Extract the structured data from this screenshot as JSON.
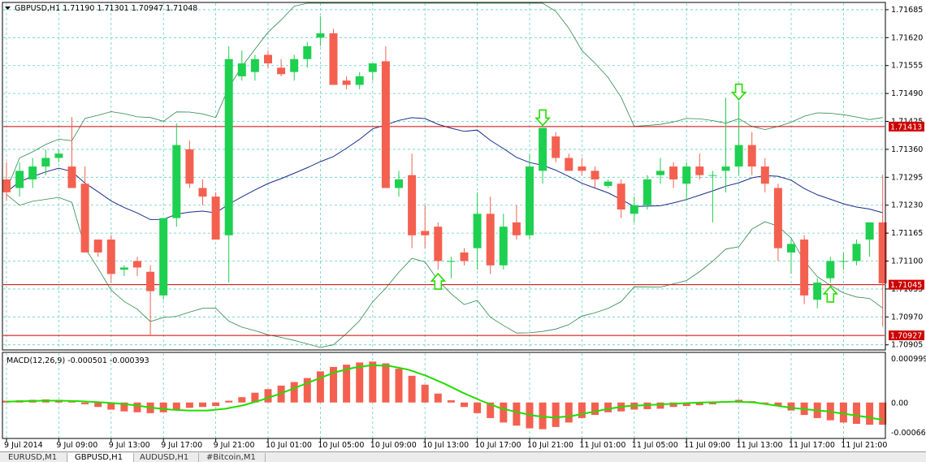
{
  "header": {
    "symbol_info": "GBPUSD,H1  1.71190 1.71301 1.70947 1.71048"
  },
  "macd": {
    "label": "MACD(12,26,9) -0.000501 -0.000393",
    "axis_ticks": [
      "0.000999",
      "0.00",
      "-0.000662"
    ]
  },
  "price_axis": {
    "ticks": [
      "1.71685",
      "1.71620",
      "1.71555",
      "1.71490",
      "1.71425",
      "1.71360",
      "1.71295",
      "1.71230",
      "1.71165",
      "1.71100",
      "1.71035",
      "1.70970",
      "1.70905"
    ],
    "tags": [
      "1.71413",
      "1.71045",
      "1.70927"
    ]
  },
  "time_axis": [
    "9 Jul 2014",
    "9 Jul 09:00",
    "9 Jul 13:00",
    "9 Jul 17:00",
    "9 Jul 21:00",
    "10 Jul 01:00",
    "10 Jul 05:00",
    "10 Jul 09:00",
    "10 Jul 13:00",
    "10 Jul 17:00",
    "10 Jul 21:00",
    "11 Jul 01:00",
    "11 Jul 05:00",
    "11 Jul 09:00",
    "11 Jul 13:00",
    "11 Jul 17:00",
    "11 Jul 21:00"
  ],
  "tabs": [
    "EURUSD,M1",
    "GBPUSD,H1",
    "AUDUSD,H1",
    "#Bitcoin,M1"
  ],
  "colors": {
    "bull": "#1ed050",
    "bear": "#f46050",
    "level": "#cc0000",
    "grid": "#60d0c0",
    "signal": "#22dd00"
  },
  "chart_data": {
    "type": "candlestick",
    "series": [
      {
        "o": 1.7129,
        "h": 1.7133,
        "l": 1.7124,
        "c": 1.7126
      },
      {
        "o": 1.7127,
        "h": 1.7133,
        "l": 1.7125,
        "c": 1.7131
      },
      {
        "o": 1.7129,
        "h": 1.7134,
        "l": 1.7127,
        "c": 1.7132
      },
      {
        "o": 1.7132,
        "h": 1.7136,
        "l": 1.713,
        "c": 1.7134
      },
      {
        "o": 1.7134,
        "h": 1.7136,
        "l": 1.7133,
        "c": 1.7135
      },
      {
        "o": 1.7132,
        "h": 1.71435,
        "l": 1.7127,
        "c": 1.7127
      },
      {
        "o": 1.7128,
        "h": 1.7132,
        "l": 1.7112,
        "c": 1.7112
      },
      {
        "o": 1.7115,
        "h": 1.7115,
        "l": 1.7111,
        "c": 1.7112
      },
      {
        "o": 1.7115,
        "h": 1.7116,
        "l": 1.7105,
        "c": 1.7107
      },
      {
        "o": 1.7108,
        "h": 1.7109,
        "l": 1.71065,
        "c": 1.71085
      },
      {
        "o": 1.711,
        "h": 1.7111,
        "l": 1.71065,
        "c": 1.71085
      },
      {
        "o": 1.71075,
        "h": 1.7109,
        "l": 1.70925,
        "c": 1.7103
      },
      {
        "o": 1.7102,
        "h": 1.712,
        "l": 1.7101,
        "c": 1.712
      },
      {
        "o": 1.712,
        "h": 1.7142,
        "l": 1.7118,
        "c": 1.7137
      },
      {
        "o": 1.7136,
        "h": 1.7138,
        "l": 1.7127,
        "c": 1.7128
      },
      {
        "o": 1.7127,
        "h": 1.7129,
        "l": 1.7123,
        "c": 1.7125
      },
      {
        "o": 1.7125,
        "h": 1.7126,
        "l": 1.7115,
        "c": 1.7115
      },
      {
        "o": 1.7116,
        "h": 1.716,
        "l": 1.7105,
        "c": 1.7157
      },
      {
        "o": 1.7153,
        "h": 1.7159,
        "l": 1.7152,
        "c": 1.7156
      },
      {
        "o": 1.7154,
        "h": 1.7158,
        "l": 1.7152,
        "c": 1.7157
      },
      {
        "o": 1.7158,
        "h": 1.7159,
        "l": 1.7155,
        "c": 1.7156
      },
      {
        "o": 1.7155,
        "h": 1.7157,
        "l": 1.7153,
        "c": 1.71535
      },
      {
        "o": 1.7154,
        "h": 1.7158,
        "l": 1.7152,
        "c": 1.7157
      },
      {
        "o": 1.7157,
        "h": 1.7161,
        "l": 1.7155,
        "c": 1.716
      },
      {
        "o": 1.7162,
        "h": 1.7167,
        "l": 1.716,
        "c": 1.7163
      },
      {
        "o": 1.7163,
        "h": 1.7164,
        "l": 1.7151,
        "c": 1.7151
      },
      {
        "o": 1.7152,
        "h": 1.7153,
        "l": 1.715,
        "c": 1.7151
      },
      {
        "o": 1.7151,
        "h": 1.7154,
        "l": 1.715,
        "c": 1.7153
      },
      {
        "o": 1.7154,
        "h": 1.7156,
        "l": 1.7152,
        "c": 1.7156
      },
      {
        "o": 1.71565,
        "h": 1.716,
        "l": 1.7127,
        "c": 1.7127
      },
      {
        "o": 1.7127,
        "h": 1.7131,
        "l": 1.7125,
        "c": 1.7129
      },
      {
        "o": 1.713,
        "h": 1.7135,
        "l": 1.7113,
        "c": 1.7116
      },
      {
        "o": 1.7117,
        "h": 1.7123,
        "l": 1.7113,
        "c": 1.7116
      },
      {
        "o": 1.7118,
        "h": 1.7119,
        "l": 1.7108,
        "c": 1.711
      },
      {
        "o": 1.711,
        "h": 1.7111,
        "l": 1.7106,
        "c": 1.711
      },
      {
        "o": 1.7112,
        "h": 1.7113,
        "l": 1.7109,
        "c": 1.711
      },
      {
        "o": 1.7113,
        "h": 1.7126,
        "l": 1.7108,
        "c": 1.7121
      },
      {
        "o": 1.7121,
        "h": 1.7125,
        "l": 1.7107,
        "c": 1.7109
      },
      {
        "o": 1.7109,
        "h": 1.7121,
        "l": 1.7108,
        "c": 1.7118
      },
      {
        "o": 1.7119,
        "h": 1.7123,
        "l": 1.7115,
        "c": 1.7116
      },
      {
        "o": 1.7116,
        "h": 1.7135,
        "l": 1.7115,
        "c": 1.7132
      },
      {
        "o": 1.7131,
        "h": 1.7141,
        "l": 1.7128,
        "c": 1.7141
      },
      {
        "o": 1.7139,
        "h": 1.714,
        "l": 1.7133,
        "c": 1.7134
      },
      {
        "o": 1.7134,
        "h": 1.7135,
        "l": 1.7131,
        "c": 1.7131
      },
      {
        "o": 1.7132,
        "h": 1.7134,
        "l": 1.713,
        "c": 1.7131
      },
      {
        "o": 1.7131,
        "h": 1.7132,
        "l": 1.7127,
        "c": 1.7129
      },
      {
        "o": 1.71275,
        "h": 1.7129,
        "l": 1.7127,
        "c": 1.71285
      },
      {
        "o": 1.7128,
        "h": 1.7129,
        "l": 1.712,
        "c": 1.7122
      },
      {
        "o": 1.7121,
        "h": 1.7125,
        "l": 1.7119,
        "c": 1.7123
      },
      {
        "o": 1.7123,
        "h": 1.713,
        "l": 1.7122,
        "c": 1.7129
      },
      {
        "o": 1.713,
        "h": 1.7134,
        "l": 1.7128,
        "c": 1.7131
      },
      {
        "o": 1.7132,
        "h": 1.7133,
        "l": 1.7127,
        "c": 1.7129
      },
      {
        "o": 1.7128,
        "h": 1.7133,
        "l": 1.7124,
        "c": 1.7132
      },
      {
        "o": 1.7132,
        "h": 1.7135,
        "l": 1.7129,
        "c": 1.713
      },
      {
        "o": 1.713,
        "h": 1.7131,
        "l": 1.7119,
        "c": 1.713
      },
      {
        "o": 1.7131,
        "h": 1.7148,
        "l": 1.7126,
        "c": 1.7132
      },
      {
        "o": 1.7132,
        "h": 1.7147,
        "l": 1.713,
        "c": 1.7137
      },
      {
        "o": 1.7137,
        "h": 1.714,
        "l": 1.713,
        "c": 1.7132
      },
      {
        "o": 1.7132,
        "h": 1.7134,
        "l": 1.7126,
        "c": 1.7128
      },
      {
        "o": 1.7127,
        "h": 1.7128,
        "l": 1.711,
        "c": 1.7113
      },
      {
        "o": 1.7112,
        "h": 1.7115,
        "l": 1.7107,
        "c": 1.7114
      },
      {
        "o": 1.7115,
        "h": 1.7116,
        "l": 1.71,
        "c": 1.7102
      },
      {
        "o": 1.7101,
        "h": 1.7106,
        "l": 1.7099,
        "c": 1.7105
      },
      {
        "o": 1.7106,
        "h": 1.7111,
        "l": 1.7105,
        "c": 1.711
      },
      {
        "o": 1.711,
        "h": 1.7112,
        "l": 1.7108,
        "c": 1.711
      },
      {
        "o": 1.711,
        "h": 1.7115,
        "l": 1.7109,
        "c": 1.7114
      },
      {
        "o": 1.7115,
        "h": 1.7119,
        "l": 1.7111,
        "c": 1.7119
      },
      {
        "o": 1.7119,
        "h": 1.71301,
        "l": 1.70947,
        "c": 1.71048
      }
    ],
    "y_range": [
      1.70895,
      1.717
    ],
    "horizontal_levels": [
      1.71413,
      1.71045,
      1.70927
    ],
    "signals": [
      {
        "index": 41,
        "type": "sell"
      },
      {
        "index": 56,
        "type": "sell"
      },
      {
        "index": 33,
        "type": "buy"
      },
      {
        "index": 63,
        "type": "buy"
      }
    ],
    "macd_histogram": [
      4e-05,
      5e-05,
      6e-05,
      7e-05,
      6e-05,
      2e-05,
      -4e-05,
      -0.0001,
      -0.00016,
      -0.0002,
      -0.00022,
      -0.00024,
      -0.00022,
      -0.00016,
      -0.00012,
      -0.0001,
      -8e-05,
      4e-05,
      0.00012,
      0.00022,
      0.0003,
      0.00038,
      0.00046,
      0.00055,
      0.0007,
      0.0008,
      0.00085,
      0.0009,
      0.00092,
      0.00088,
      0.00076,
      0.0006,
      0.0004,
      0.0002,
      5e-05,
      -0.0001,
      -0.00024,
      -0.00035,
      -0.00045,
      -0.00052,
      -0.00058,
      -0.0006,
      -0.00055,
      -0.00045,
      -0.00035,
      -0.00028,
      -0.00022,
      -0.0002,
      -0.00016,
      -0.00015,
      -0.00014,
      -0.0001,
      -8e-05,
      -6e-05,
      -4e-05,
      3e-05,
      6e-05,
      3e-05,
      -2e-05,
      -8e-05,
      -0.00018,
      -0.00028,
      -0.00035,
      -0.0004,
      -0.00045,
      -0.00048,
      -0.0005,
      -0.0005
    ],
    "macd_signal": [
      2e-05,
      3e-05,
      4e-05,
      4e-05,
      3e-05,
      1e-05,
      -2e-05,
      -6e-05,
      -0.00012,
      -0.00016,
      -0.00018,
      -0.00018,
      -0.00014,
      -6e-05,
      6e-05,
      0.0002,
      0.00036,
      0.00052,
      0.00068,
      0.00078,
      0.00084,
      0.00082,
      0.00074,
      0.0006,
      0.00042,
      0.00022,
      4e-05,
      -0.00012,
      -0.00022,
      -0.0003,
      -0.00034,
      -0.0003,
      -0.00022,
      -0.00014,
      -8e-05,
      -6e-05,
      -4e-05,
      -2e-05,
      0.0,
      1e-05,
      2e-05,
      0.0,
      -6e-05,
      -0.00012,
      -0.00016,
      -0.0002,
      -0.00026,
      -0.00032,
      -0.00039
    ],
    "macd_range": [
      -0.000662,
      0.000999
    ]
  }
}
